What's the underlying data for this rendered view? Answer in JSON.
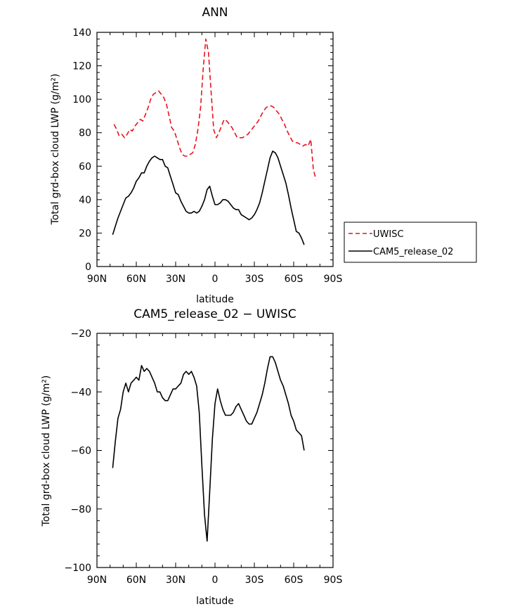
{
  "chart_data": [
    {
      "type": "line",
      "title": "ANN",
      "xlabel": "latitude",
      "ylabel": "Total grd-box cloud LWP (g/m²)",
      "xlim": [
        -90,
        90
      ],
      "ylim": [
        0,
        140
      ],
      "xticks": [
        -90,
        -60,
        -30,
        0,
        30,
        60,
        90
      ],
      "xtick_labels": [
        "90N",
        "60N",
        "30N",
        "0",
        "30S",
        "60S",
        "90S"
      ],
      "yticks": [
        0,
        20,
        40,
        60,
        80,
        100,
        120,
        140
      ],
      "ytick_labels": [
        "0",
        "20",
        "40",
        "60",
        "80",
        "100",
        "120",
        "140"
      ],
      "legend": {
        "placement": "right",
        "entries": [
          "UWISC",
          "CAM5_release_02"
        ]
      },
      "series": [
        {
          "name": "UWISC",
          "color": "#e8141e",
          "dash": "dashed",
          "x": [
            -77,
            -75,
            -73,
            -71,
            -69,
            -67,
            -65,
            -63,
            -61,
            -59,
            -57,
            -55,
            -53,
            -51,
            -49,
            -47,
            -45,
            -43,
            -41,
            -39,
            -37,
            -35,
            -33,
            -31,
            -29,
            -27,
            -25,
            -23,
            -21,
            -19,
            -17,
            -15,
            -13,
            -11,
            -9,
            -7,
            -5,
            -3,
            -1,
            1,
            3,
            5,
            7,
            9,
            11,
            13,
            15,
            17,
            19,
            21,
            23,
            25,
            27,
            29,
            31,
            33,
            35,
            37,
            39,
            41,
            43,
            45,
            47,
            49,
            51,
            53,
            55,
            57,
            59,
            61,
            63,
            65,
            67,
            69,
            71,
            73,
            75,
            77
          ],
          "values": [
            85,
            82,
            78,
            79,
            77,
            79,
            82,
            81,
            84,
            86,
            88,
            87,
            91,
            95,
            100,
            103,
            104,
            105,
            103,
            101,
            97,
            90,
            83,
            81,
            76,
            71,
            67,
            66,
            66,
            67,
            68,
            73,
            82,
            95,
            118,
            136,
            128,
            105,
            82,
            77,
            80,
            84,
            88,
            87,
            85,
            83,
            80,
            77,
            77,
            77,
            78,
            79,
            81,
            83,
            85,
            87,
            90,
            93,
            95,
            96,
            96,
            95,
            93,
            91,
            88,
            85,
            81,
            78,
            75,
            74,
            74,
            73,
            72,
            73,
            72,
            76,
            58,
            52
          ]
        },
        {
          "name": "CAM5_release_02",
          "color": "#000000",
          "dash": "solid",
          "x": [
            -78,
            -76,
            -74,
            -72,
            -70,
            -68,
            -66,
            -64,
            -62,
            -60,
            -58,
            -56,
            -54,
            -52,
            -50,
            -48,
            -46,
            -44,
            -42,
            -40,
            -38,
            -36,
            -34,
            -32,
            -30,
            -28,
            -26,
            -24,
            -22,
            -20,
            -18,
            -16,
            -14,
            -12,
            -10,
            -8,
            -6,
            -4,
            -2,
            0,
            2,
            4,
            6,
            8,
            10,
            12,
            14,
            16,
            18,
            20,
            22,
            24,
            26,
            28,
            30,
            32,
            34,
            36,
            38,
            40,
            42,
            44,
            46,
            48,
            50,
            52,
            54,
            56,
            58,
            60,
            62,
            64,
            66,
            68
          ],
          "values": [
            19,
            24,
            29,
            33,
            37,
            41,
            42,
            44,
            47,
            51,
            53,
            56,
            56,
            60,
            63,
            65,
            66,
            65,
            64,
            64,
            60,
            59,
            54,
            49,
            44,
            43,
            39,
            36,
            33,
            32,
            32,
            33,
            32,
            33,
            36,
            40,
            46,
            48,
            42,
            37,
            37,
            38,
            40,
            40,
            39,
            37,
            35,
            34,
            34,
            31,
            30,
            29,
            28,
            29,
            31,
            34,
            38,
            44,
            51,
            58,
            65,
            69,
            68,
            65,
            60,
            55,
            50,
            43,
            35,
            28,
            21,
            20,
            17,
            13
          ]
        }
      ]
    },
    {
      "type": "line",
      "title": "CAM5_release_02 − UWISC",
      "xlabel": "latitude",
      "ylabel": "Total grd-box cloud LWP (g/m²)",
      "xlim": [
        -90,
        90
      ],
      "ylim": [
        -100,
        -20
      ],
      "xticks": [
        -90,
        -60,
        -30,
        0,
        30,
        60,
        90
      ],
      "xtick_labels": [
        "90N",
        "60N",
        "30N",
        "0",
        "30S",
        "60S",
        "90S"
      ],
      "yticks": [
        -100,
        -80,
        -60,
        -40,
        -20
      ],
      "ytick_labels": [
        "−100",
        "−80",
        "−60",
        "−40",
        "−20"
      ],
      "series": [
        {
          "name": "CAM5_release_02 − UWISC",
          "color": "#000000",
          "dash": "solid",
          "x": [
            -78,
            -76,
            -74,
            -72,
            -70,
            -68,
            -66,
            -64,
            -62,
            -60,
            -58,
            -56,
            -54,
            -52,
            -50,
            -48,
            -46,
            -44,
            -42,
            -40,
            -38,
            -36,
            -34,
            -32,
            -30,
            -28,
            -26,
            -24,
            -22,
            -20,
            -18,
            -16,
            -14,
            -12,
            -10,
            -8,
            -6,
            -4,
            -2,
            0,
            2,
            4,
            6,
            8,
            10,
            12,
            14,
            16,
            18,
            20,
            22,
            24,
            26,
            28,
            30,
            32,
            34,
            36,
            38,
            40,
            42,
            44,
            46,
            48,
            50,
            52,
            54,
            56,
            58,
            60,
            62,
            64,
            66,
            68
          ],
          "values": [
            -66,
            -57,
            -49,
            -46,
            -40,
            -37,
            -40,
            -37,
            -36,
            -35,
            -36,
            -31,
            -33,
            -32,
            -33,
            -35,
            -37,
            -40,
            -40,
            -42,
            -43,
            -43,
            -41,
            -39,
            -39,
            -38,
            -37,
            -34,
            -33,
            -34,
            -33,
            -35,
            -38,
            -47,
            -65,
            -82,
            -91,
            -74,
            -56,
            -44,
            -39,
            -43,
            -46,
            -48,
            -48,
            -48,
            -47,
            -45,
            -44,
            -46,
            -48,
            -50,
            -51,
            -51,
            -49,
            -47,
            -44,
            -41,
            -37,
            -32,
            -28,
            -28,
            -30,
            -33,
            -36,
            -38,
            -41,
            -44,
            -48,
            -50,
            -53,
            -54,
            -55,
            -60
          ]
        }
      ]
    }
  ]
}
